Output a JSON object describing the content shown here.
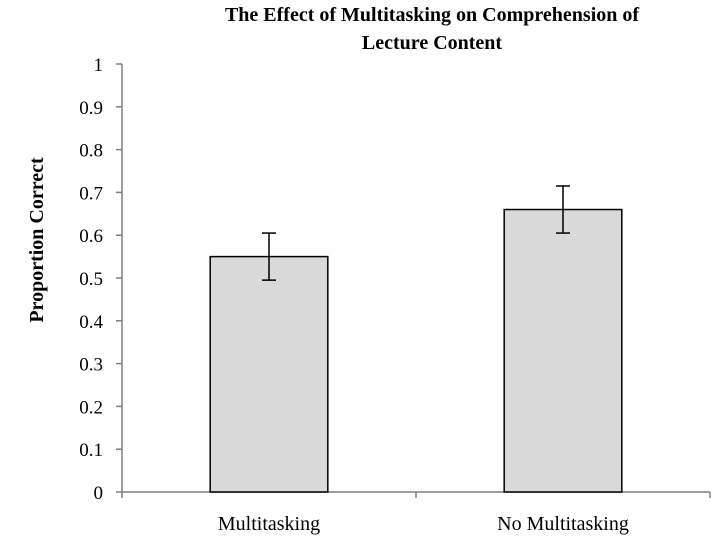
{
  "chart_data": {
    "type": "bar",
    "title": "The Effect of Multitasking on Comprehension of Lecture Content",
    "title_lines": [
      "The Effect of Multitasking on Comprehension of",
      "Lecture Content"
    ],
    "xlabel": "",
    "ylabel": "Proportion Correct",
    "categories": [
      "Multitasking",
      "No Multitasking"
    ],
    "values": [
      0.55,
      0.66
    ],
    "error": [
      0.055,
      0.055
    ],
    "ylim": [
      0,
      1
    ],
    "yticks": [
      "0",
      "0.1",
      "0.2",
      "0.3",
      "0.4",
      "0.5",
      "0.6",
      "0.7",
      "0.8",
      "0.9",
      "1"
    ],
    "grid": false,
    "legend": "none",
    "colors": {
      "bar_fill": "#d9d9d9",
      "bar_stroke": "#000000",
      "axis": "#7f7f7f",
      "error_bar": "#000000"
    }
  }
}
